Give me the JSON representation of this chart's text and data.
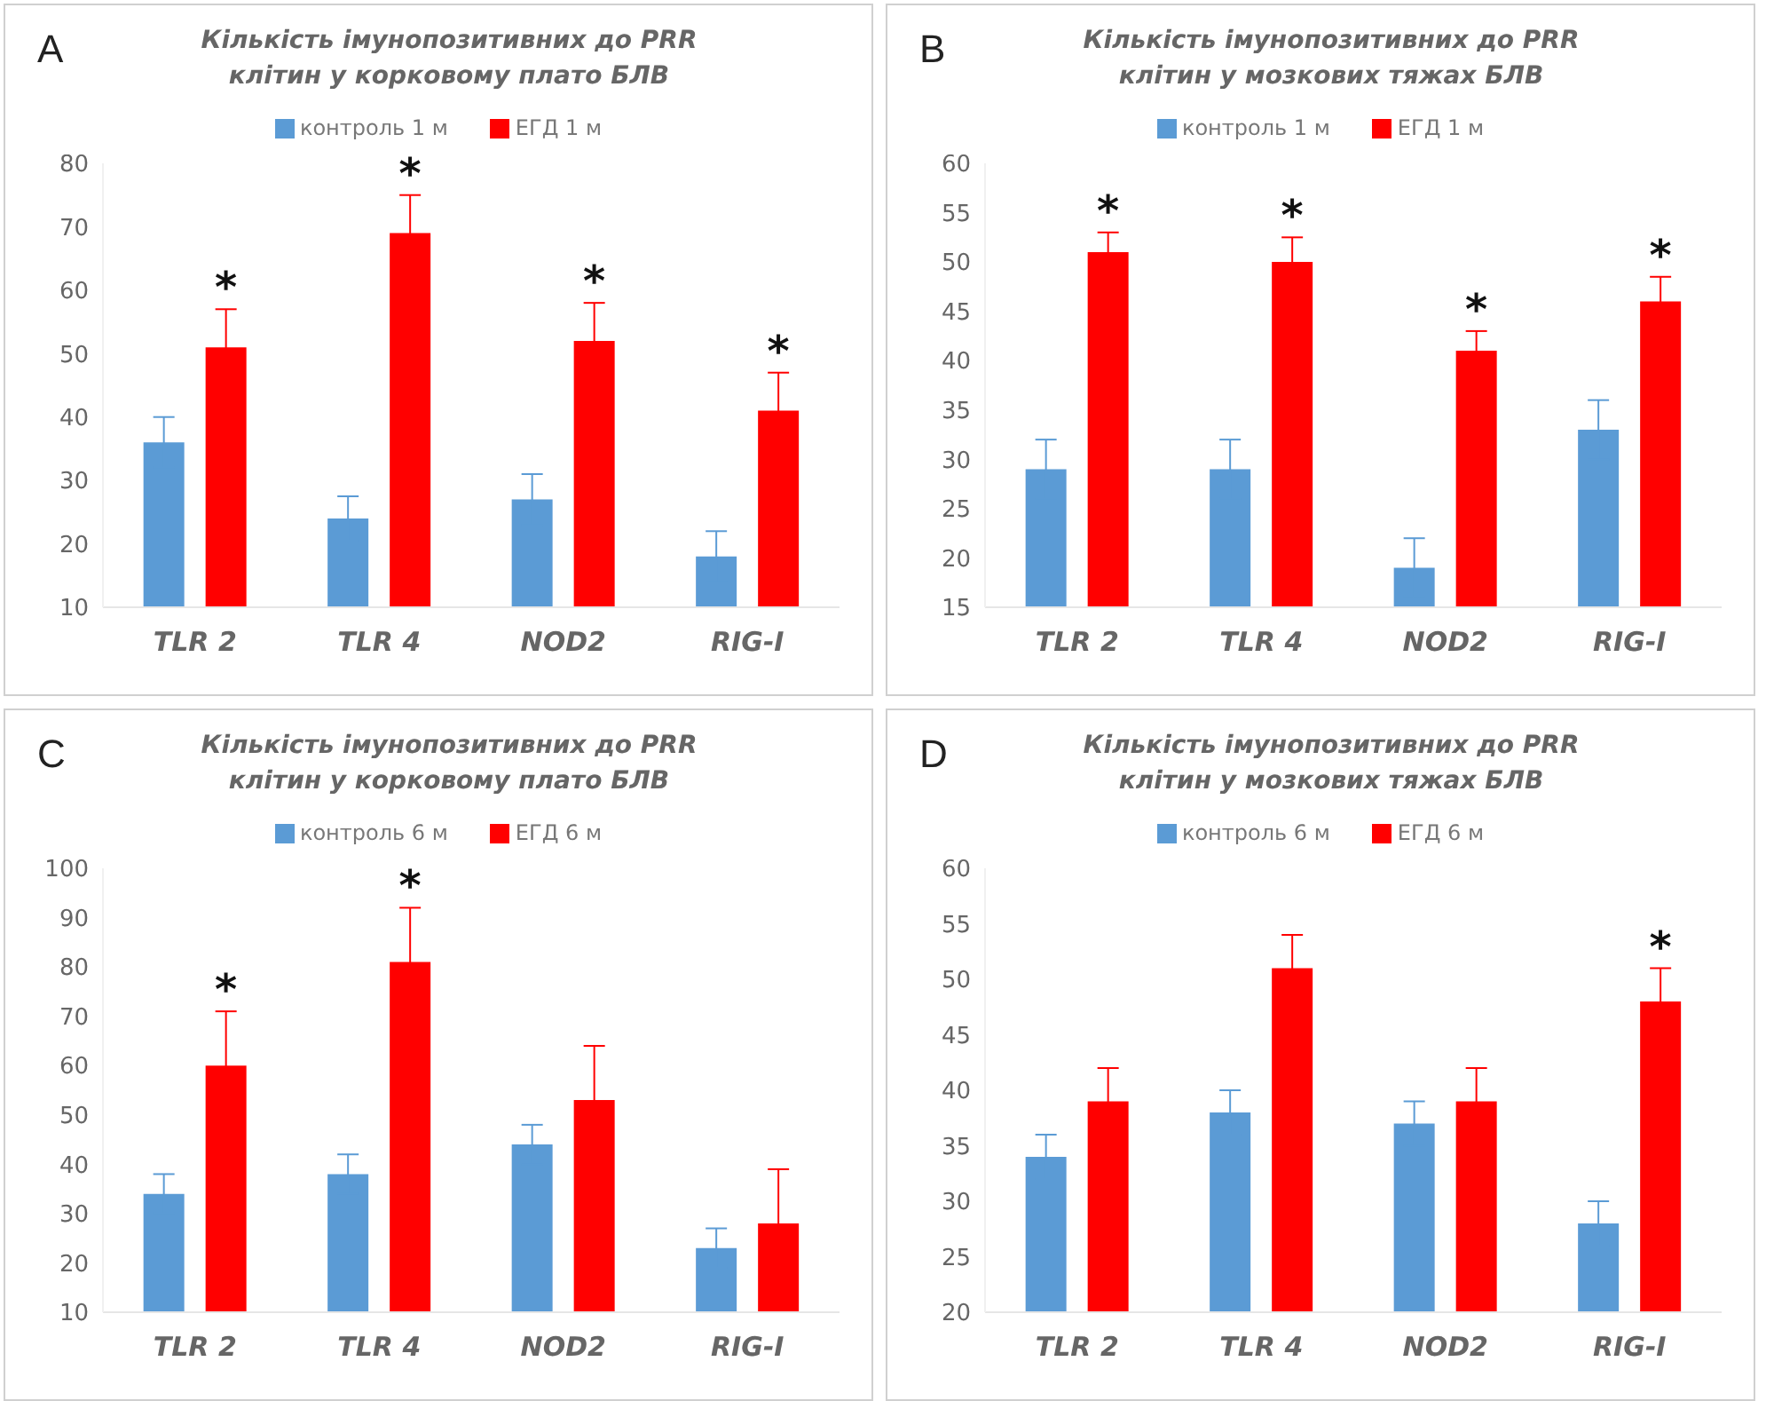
{
  "chart_data": [
    {
      "type": "bar",
      "title": "Кількість імунопозитивних до PRR клітин у корковому плато БЛВ",
      "categories": [
        "TLR 2",
        "TLR 4",
        "NOD2",
        "RIG-I"
      ],
      "legend": "top",
      "grid": false,
      "ylim": [
        10,
        80
      ],
      "yticks": [
        10,
        20,
        30,
        40,
        50,
        60,
        70,
        80
      ],
      "series": [
        {
          "name": "контроль 1 м",
          "color": "#5b9bd5",
          "values": [
            36,
            24,
            27,
            18
          ],
          "errors": [
            4,
            3.5,
            4,
            4
          ]
        },
        {
          "name": "ЕГД 1 м",
          "color": "#ff0000",
          "values": [
            51,
            69,
            52,
            41
          ],
          "errors": [
            6,
            6,
            6,
            6
          ],
          "value_labels": [
            "*",
            "*",
            "*",
            "*"
          ]
        }
      ],
      "annotations": [
        "A"
      ]
    },
    {
      "type": "bar",
      "title": "Кількість імунопозитивних до PRR клітин у мозкових тяжах БЛВ",
      "categories": [
        "TLR 2",
        "TLR 4",
        "NOD2",
        "RIG-I"
      ],
      "legend": "top",
      "grid": false,
      "ylim": [
        15,
        60
      ],
      "yticks": [
        15,
        20,
        25,
        30,
        35,
        40,
        45,
        50,
        55,
        60
      ],
      "series": [
        {
          "name": "контроль 1 м",
          "color": "#5b9bd5",
          "values": [
            29,
            29,
            19,
            33
          ],
          "errors": [
            3,
            3,
            3,
            3
          ]
        },
        {
          "name": "ЕГД 1 м",
          "color": "#ff0000",
          "values": [
            51,
            50,
            41,
            46
          ],
          "errors": [
            2,
            2.5,
            2,
            2.5
          ],
          "value_labels": [
            "*",
            "*",
            "*",
            "*"
          ]
        }
      ],
      "annotations": [
        "B"
      ]
    },
    {
      "type": "bar",
      "title": "Кількість імунопозитивних до PRR клітин у корковому плато БЛВ",
      "categories": [
        "TLR 2",
        "TLR 4",
        "NOD2",
        "RIG-I"
      ],
      "legend": "top",
      "grid": false,
      "ylim": [
        10,
        100
      ],
      "yticks": [
        10,
        20,
        30,
        40,
        50,
        60,
        70,
        80,
        90,
        100
      ],
      "series": [
        {
          "name": "контроль 6 м",
          "color": "#5b9bd5",
          "values": [
            34,
            38,
            44,
            23
          ],
          "errors": [
            4,
            4,
            4,
            4
          ]
        },
        {
          "name": "ЕГД 6 м",
          "color": "#ff0000",
          "values": [
            60,
            81,
            53,
            28
          ],
          "errors": [
            11,
            11,
            11,
            11
          ],
          "value_labels": [
            "*",
            "*",
            null,
            null
          ]
        }
      ],
      "annotations": [
        "C"
      ]
    },
    {
      "type": "bar",
      "title": "Кількість імунопозитивних до PRR клітин у мозкових тяжах БЛВ",
      "categories": [
        "TLR 2",
        "TLR 4",
        "NOD2",
        "RIG-I"
      ],
      "legend": "top",
      "grid": false,
      "ylim": [
        20,
        60
      ],
      "yticks": [
        20,
        25,
        30,
        35,
        40,
        45,
        50,
        55,
        60
      ],
      "series": [
        {
          "name": "контроль 6 м",
          "color": "#5b9bd5",
          "values": [
            34,
            38,
            37,
            28
          ],
          "errors": [
            2,
            2,
            2,
            2
          ]
        },
        {
          "name": "ЕГД 6 м",
          "color": "#ff0000",
          "values": [
            39,
            51,
            39,
            48
          ],
          "errors": [
            3,
            3,
            3,
            3
          ],
          "value_labels": [
            null,
            null,
            null,
            "*"
          ]
        }
      ],
      "annotations": [
        "D"
      ]
    }
  ]
}
